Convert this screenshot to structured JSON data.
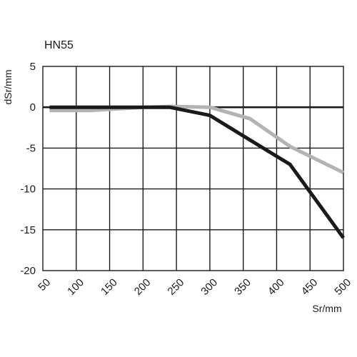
{
  "chart_data": {
    "type": "line",
    "title": "HN55",
    "xlabel": "Sr/mm",
    "ylabel": "dSr/mm",
    "xlim": [
      50,
      500
    ],
    "ylim": [
      -20,
      5
    ],
    "xticks": [
      50,
      100,
      150,
      200,
      250,
      300,
      350,
      400,
      450,
      500
    ],
    "yticks": [
      5,
      0,
      -5,
      -10,
      -15,
      -20
    ],
    "xtick_labels": [
      "50",
      "100",
      "150",
      "200",
      "250",
      "300",
      "350",
      "400",
      "450",
      "500"
    ],
    "ytick_labels": [
      "5",
      "0",
      "-5",
      "-10",
      "-15",
      "-20"
    ],
    "grid": true,
    "series": [
      {
        "color": "#1a1a1a",
        "x": [
          60,
          200,
          240,
          300,
          360,
          420,
          500
        ],
        "y": [
          0,
          0,
          0,
          -1,
          -4,
          -7,
          -16
        ]
      },
      {
        "color": "#b3b3b3",
        "x": [
          60,
          120,
          200,
          240,
          300,
          360,
          420,
          500
        ],
        "y": [
          -0.4,
          -0.4,
          0,
          0.1,
          0,
          -1.4,
          -4.8,
          -8
        ]
      }
    ]
  }
}
